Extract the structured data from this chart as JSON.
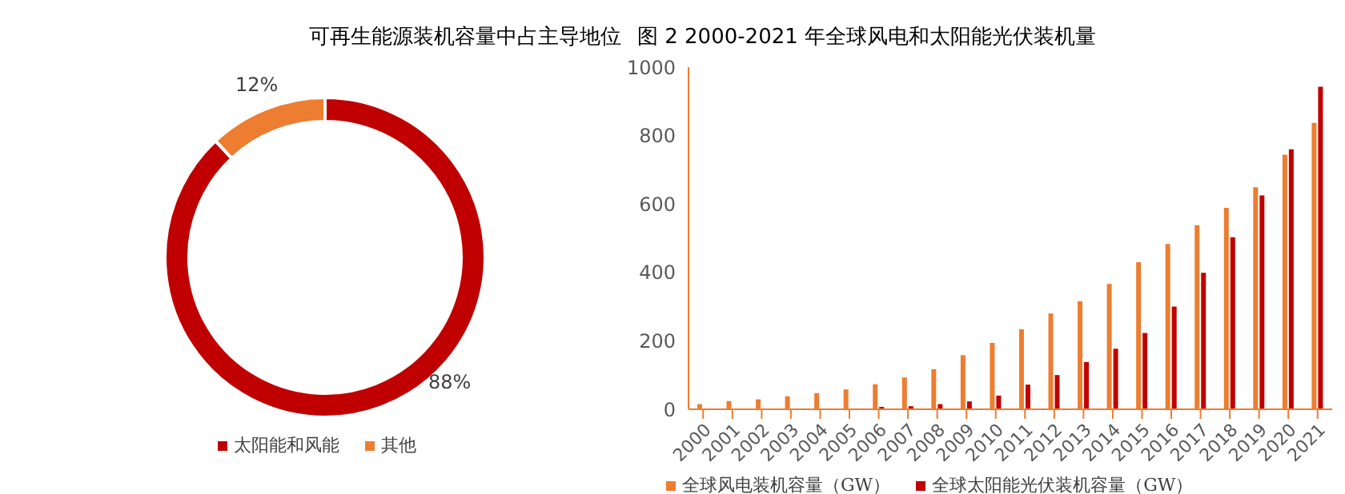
{
  "chart_data": [
    {
      "type": "donut",
      "title": "可再生能源装机容量中占主导地位",
      "categories": [
        "太阳能和风能",
        "其他"
      ],
      "values": [
        88,
        12
      ],
      "colors": [
        "#c00000",
        "#ed7d31"
      ],
      "value_labels": [
        "88%",
        "12%"
      ],
      "legend": "bottom"
    },
    {
      "type": "bar",
      "title": "图 2 2000-2021 年全球风电和太阳能光伏装机量",
      "categories": [
        "2000",
        "2001",
        "2002",
        "2003",
        "2004",
        "2005",
        "2006",
        "2007",
        "2008",
        "2009",
        "2010",
        "2011",
        "2012",
        "2013",
        "2014",
        "2015",
        "2016",
        "2017",
        "2018",
        "2019",
        "2020",
        "2021"
      ],
      "series": [
        {
          "name": "全球风电装机容量（GW）",
          "color": "#ed7d31",
          "values": [
            15,
            24,
            29,
            38,
            47,
            58,
            73,
            93,
            117,
            158,
            194,
            234,
            280,
            316,
            366,
            430,
            483,
            538,
            589,
            649,
            744,
            837
          ]
        },
        {
          "name": "全球太阳能光伏装机容量（GW）",
          "color": "#c00000",
          "values": [
            1,
            1,
            2,
            null,
            null,
            null,
            7,
            9,
            15,
            23,
            40,
            72,
            100,
            138,
            177,
            223,
            300,
            399,
            503,
            625,
            760,
            943
          ]
        }
      ],
      "ylim": [
        0,
        1000
      ],
      "yticks": [
        0,
        200,
        400,
        600,
        800,
        1000
      ],
      "legend": "bottom"
    }
  ]
}
